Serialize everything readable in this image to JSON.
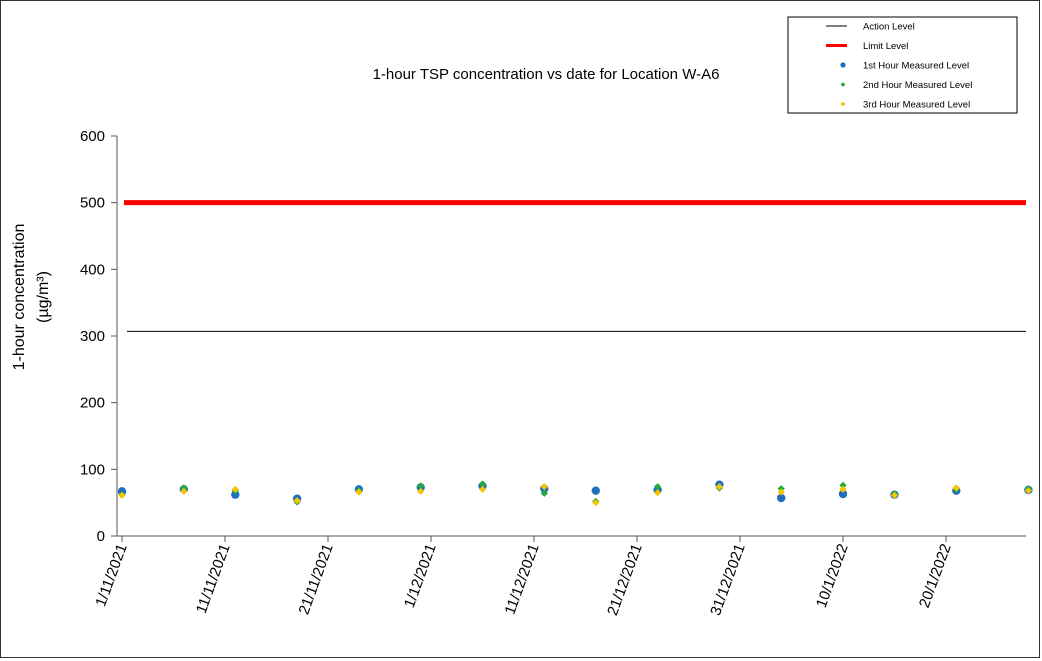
{
  "chart_data": {
    "type": "scatter",
    "title": "1-hour TSP concentration vs date for Location  W-A6",
    "ylabel_line1": "1-hour concentration",
    "ylabel_line2": "(µg/m³)",
    "xlabel": "",
    "ylim": [
      0,
      600
    ],
    "yticks": [
      "0",
      "100",
      "200",
      "300",
      "400",
      "500",
      "600"
    ],
    "x_axis_type": "date",
    "xlim": [
      "2021-11-01",
      "2022-01-29"
    ],
    "xticks": [
      {
        "date": "2021-11-01",
        "label": "1/11/2021"
      },
      {
        "date": "2021-11-11",
        "label": "11/11/2021"
      },
      {
        "date": "2021-11-21",
        "label": "21/11/2021"
      },
      {
        "date": "2021-12-01",
        "label": "1/12/2021"
      },
      {
        "date": "2021-12-11",
        "label": "11/12/2021"
      },
      {
        "date": "2021-12-21",
        "label": "21/12/2021"
      },
      {
        "date": "2021-12-31",
        "label": "31/12/2021"
      },
      {
        "date": "2022-01-10",
        "label": "10/1/2022"
      },
      {
        "date": "2022-01-20",
        "label": "20/1/2022"
      }
    ],
    "grid": false,
    "legend_placement": "top-right",
    "reference_lines": [
      {
        "name": "Action Level",
        "value": 307,
        "color": "#000000"
      },
      {
        "name": "Limit Level",
        "value": 500,
        "color": "#ff0000"
      }
    ],
    "x": [
      "2021-11-01",
      "2021-11-07",
      "2021-11-12",
      "2021-11-18",
      "2021-11-24",
      "2021-11-30",
      "2021-12-06",
      "2021-12-12",
      "2021-12-17",
      "2021-12-23",
      "2021-12-29",
      "2022-01-04",
      "2022-01-10",
      "2022-01-15",
      "2022-01-21",
      "2022-01-28"
    ],
    "series": [
      {
        "name": "1st Hour Measured Level",
        "color": "#1f6fc0",
        "marker": "circle",
        "values": [
          67,
          70,
          62,
          56,
          70,
          73,
          75,
          71,
          68,
          69,
          77,
          57,
          63,
          62,
          68,
          69
        ]
      },
      {
        "name": "2nd Hour Measured Level",
        "color": "#22aa3a",
        "marker": "diamond",
        "values": [
          62,
          72,
          68,
          51,
          68,
          75,
          78,
          64,
          52,
          74,
          72,
          71,
          76,
          63,
          70,
          71
        ]
      },
      {
        "name": "3rd Hour Measured Level",
        "color": "#f5c400",
        "marker": "diamond",
        "values": [
          61,
          67,
          70,
          53,
          66,
          67,
          70,
          74,
          50,
          65,
          74,
          66,
          70,
          61,
          72,
          68
        ]
      }
    ]
  }
}
